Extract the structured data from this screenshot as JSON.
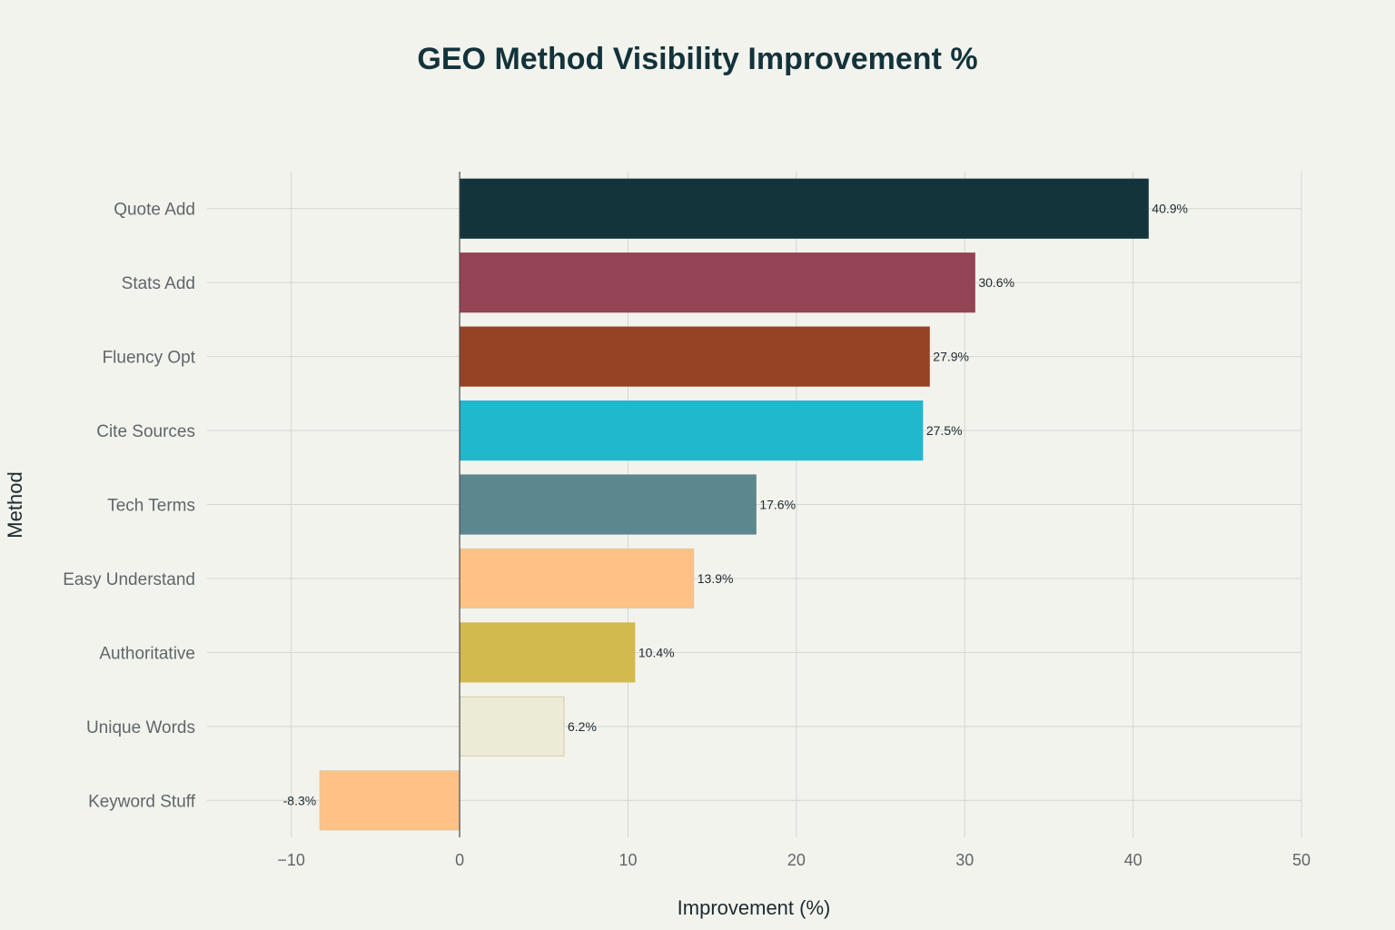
{
  "chart_data": {
    "type": "bar",
    "orientation": "horizontal",
    "title": "GEO Method Visibility Improvement %",
    "xlabel": "Improvement (%)",
    "ylabel": "Method",
    "xlim": [
      -15,
      50
    ],
    "xticks": [
      -10,
      0,
      10,
      20,
      30,
      40,
      50
    ],
    "xtick_labels": [
      "−10",
      "0",
      "10",
      "20",
      "30",
      "40",
      "50"
    ],
    "grid": true,
    "categories": [
      "Quote Add",
      "Stats Add",
      "Fluency Opt",
      "Cite Sources",
      "Tech Terms",
      "Easy Understand",
      "Authoritative",
      "Unique Words",
      "Keyword Stuff"
    ],
    "values": [
      40.9,
      30.6,
      27.9,
      27.5,
      17.6,
      13.9,
      10.4,
      6.2,
      -8.3
    ],
    "data_labels": [
      "40.9%",
      "30.6%",
      "27.9%",
      "27.5%",
      "17.6%",
      "13.9%",
      "10.4%",
      "6.2%",
      "-8.3%"
    ],
    "colors": [
      "#13343b",
      "#944454",
      "#964325",
      "#1fb8cd",
      "#5d878f",
      "#ffc185",
      "#d2ba4c",
      "#ecebd5",
      "#ffc185"
    ]
  }
}
